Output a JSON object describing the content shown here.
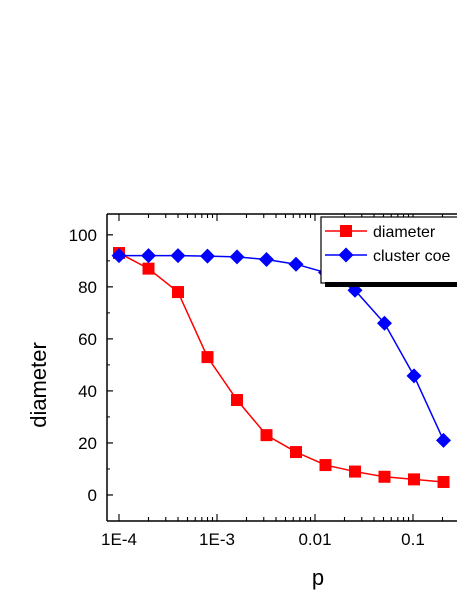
{
  "chart_data": {
    "type": "line",
    "title": "",
    "xlabel": "p",
    "ylabel": "diameter",
    "x_scale": "log",
    "xlim": [
      0.0001,
      0.25
    ],
    "ylim": [
      -10,
      108
    ],
    "x_ticks": [
      {
        "value": 0.0001,
        "label": "1E-4"
      },
      {
        "value": 0.001,
        "label": "1E-3"
      },
      {
        "value": 0.01,
        "label": "0.01"
      },
      {
        "value": 0.1,
        "label": "0.1"
      }
    ],
    "y_ticks": [
      {
        "value": 0,
        "label": "0"
      },
      {
        "value": 20,
        "label": "20"
      },
      {
        "value": 40,
        "label": "40"
      },
      {
        "value": 60,
        "label": "60"
      },
      {
        "value": 80,
        "label": "80"
      },
      {
        "value": 100,
        "label": "100"
      }
    ],
    "grid": false,
    "legend_position": "top-right",
    "series": [
      {
        "name": "diameter",
        "color": "#ff0000",
        "marker": "square",
        "x": [
          0.0001,
          0.0002,
          0.0004,
          0.0008,
          0.0016,
          0.0032,
          0.0064,
          0.0128,
          0.0256,
          0.0512,
          0.1024,
          0.2048
        ],
        "y": [
          93,
          87,
          78,
          53,
          36.5,
          23,
          16.5,
          11.5,
          9,
          7,
          6,
          5
        ]
      },
      {
        "name": "cluster coe",
        "color": "#0000ff",
        "marker": "diamond",
        "x": [
          0.0001,
          0.0002,
          0.0004,
          0.0008,
          0.0016,
          0.0032,
          0.0064,
          0.0128,
          0.0256,
          0.0512,
          0.1024,
          0.2048
        ],
        "y": [
          92,
          92,
          92,
          91.8,
          91.5,
          90.5,
          88.7,
          85.5,
          78.7,
          66,
          45.8,
          21
        ]
      }
    ]
  }
}
